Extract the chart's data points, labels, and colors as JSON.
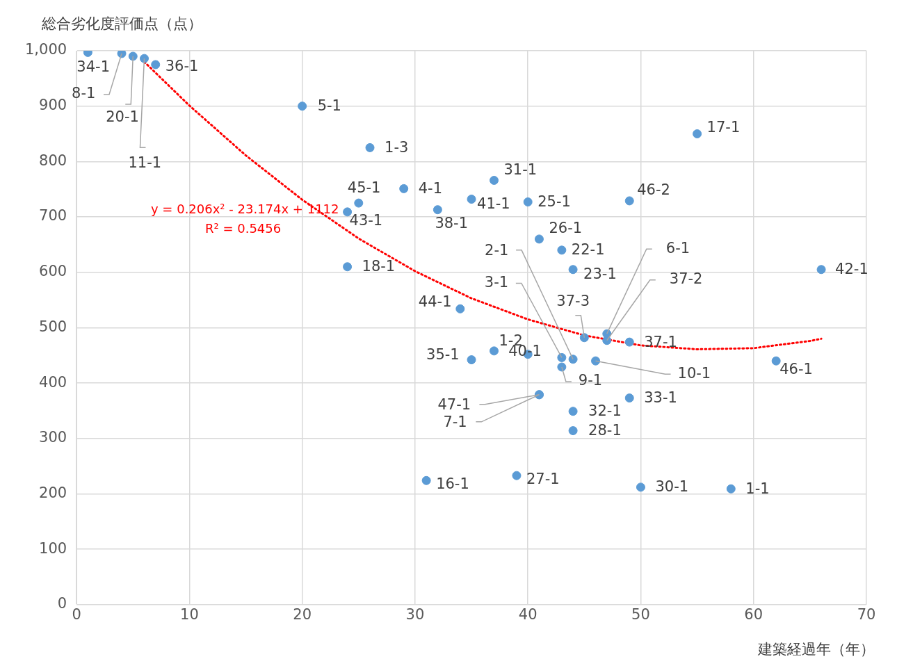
{
  "chart_data": {
    "type": "scatter",
    "ylabel": "総合劣化度評価点（点）",
    "xlabel": "建築経過年（年）",
    "xlim": [
      0,
      70
    ],
    "xticks": [
      0,
      10,
      20,
      30,
      40,
      50,
      60,
      70
    ],
    "ylim": [
      0,
      1000
    ],
    "yticks": [
      0,
      100,
      200,
      300,
      400,
      500,
      600,
      700,
      800,
      900,
      {
        "value": 1000,
        "label": "1,000"
      }
    ],
    "grid": true,
    "legend": false,
    "marker": "circle",
    "annotations": [
      "y = 0.206x² - 23.174x + 1112",
      "R² = 0.5456"
    ],
    "series": [
      {
        "type": "scatter",
        "color": "#5b9bd5",
        "x": [
          1,
          4,
          5,
          6,
          7,
          20,
          26,
          29,
          25,
          24,
          35,
          37,
          32,
          40,
          49,
          55,
          41,
          43,
          44,
          24,
          66,
          34,
          45,
          47,
          47,
          49,
          37,
          40,
          35,
          44,
          43,
          43,
          46,
          62,
          41,
          41,
          49,
          44,
          44,
          31,
          39,
          50,
          58
        ],
        "values": [
          997,
          995,
          990,
          986,
          975,
          900,
          825,
          751,
          725,
          709,
          732,
          766,
          713,
          727,
          729,
          850,
          660,
          640,
          605,
          610,
          605,
          534,
          482,
          489,
          477,
          474,
          458,
          452,
          442,
          443,
          446,
          429,
          440,
          440,
          379,
          379,
          373,
          349,
          314,
          224,
          233,
          212,
          209
        ],
        "value_labels": [
          "34-1",
          "8-1",
          "20-1",
          "11-1",
          "36-1",
          "5-1",
          "1-3",
          "4-1",
          "45-1",
          "43-1",
          "41-1",
          "31-1",
          "38-1",
          "25-1",
          "46-2",
          "17-1",
          "26-1",
          "22-1",
          "23-1",
          "18-1",
          "42-1",
          "44-1",
          "37-3",
          "6-1",
          "37-2",
          "37-1",
          "1-2",
          "40-1",
          "35-1",
          "2-1",
          "3-1",
          "9-1",
          "10-1",
          "46-1",
          "47-1",
          "7-1",
          "33-1",
          "32-1",
          "28-1",
          "16-1",
          "27-1",
          "30-1",
          "1-1"
        ]
      },
      {
        "type": "line",
        "color": "#ff0000",
        "line_style": "dotted",
        "marker": "none",
        "x": [
          6,
          10,
          15,
          20,
          25,
          30,
          35,
          40,
          45,
          50,
          55,
          60,
          65,
          66
        ],
        "values": [
          980,
          901,
          811,
          731,
          661,
          602,
          553,
          515,
          486,
          468,
          461,
          463,
          476,
          480
        ]
      }
    ]
  }
}
